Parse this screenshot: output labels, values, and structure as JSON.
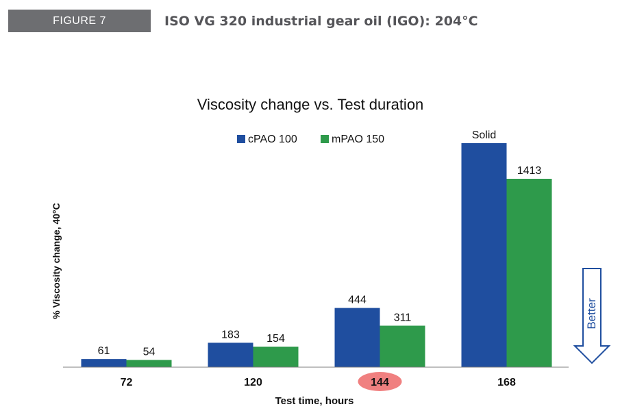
{
  "figure": {
    "tag": "FIGURE 7",
    "caption": "ISO VG 320 industrial gear oil (IGO): 204°C"
  },
  "chart_data": {
    "type": "bar",
    "title": "Viscosity change vs. Test duration",
    "xlabel": "Test time, hours",
    "ylabel": "% Viscosity change, 40°C",
    "categories": [
      "72",
      "120",
      "144",
      "168"
    ],
    "highlighted_category": "144",
    "highlight_color": "#f08080",
    "series": [
      {
        "name": "cPAO 100",
        "color": "#1f4e9f",
        "values": [
          61,
          183,
          444,
          null
        ],
        "labels": [
          "61",
          "183",
          "444",
          "Solid"
        ]
      },
      {
        "name": "mPAO 150",
        "color": "#2e9a4b",
        "values": [
          54,
          154,
          311,
          1413
        ],
        "labels": [
          "54",
          "154",
          "311",
          "1413"
        ]
      }
    ],
    "legend_position": "top",
    "y_axis_shown": false,
    "grid": false,
    "annotation": {
      "text": "Better",
      "icon": "down-arrow-icon",
      "color": "#1f4e9f"
    }
  }
}
